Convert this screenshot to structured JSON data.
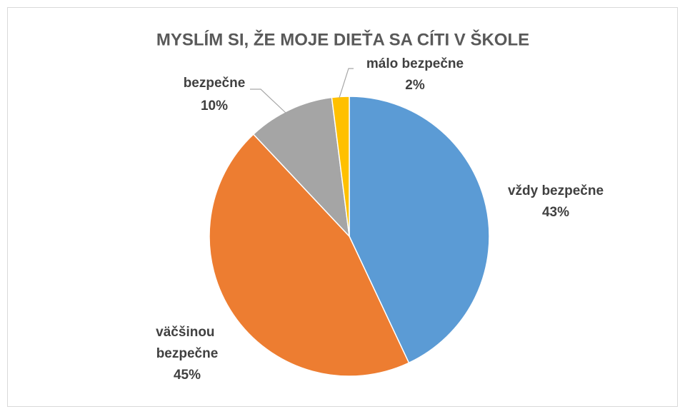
{
  "chart_data": {
    "type": "pie",
    "title": "MYSLÍM SI, ŽE MOJE DIEŤA SA CÍTI V ŠKOLE",
    "categories": [
      "vždy bezpečne",
      "väčšinou bezpečne",
      "bezpečne",
      "málo bezpečne"
    ],
    "values": [
      43,
      45,
      10,
      2
    ],
    "value_labels": [
      "43%",
      "45%",
      "10%",
      "2%"
    ],
    "colors": [
      "#5b9bd5",
      "#ed7d31",
      "#a5a5a5",
      "#ffc000"
    ]
  }
}
